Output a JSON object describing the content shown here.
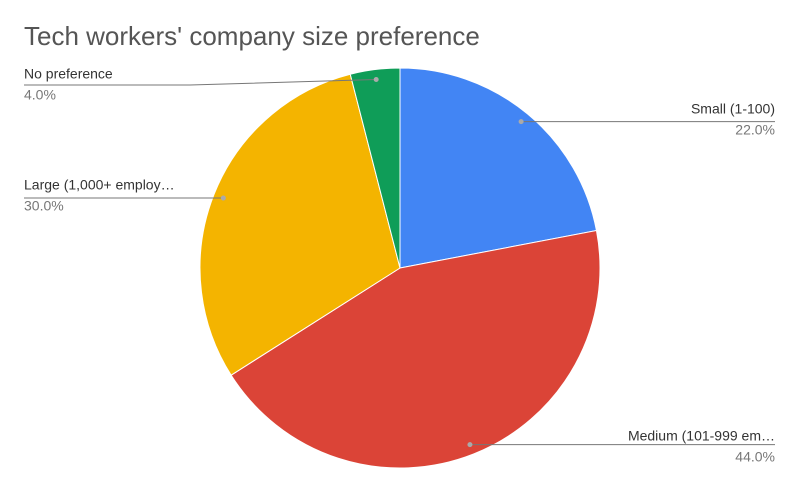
{
  "chart_data": {
    "type": "pie",
    "title": "Tech workers' company size preference",
    "categories": [
      "Small (1-100)",
      "Medium (101-999 em…",
      "Large (1,000+ employ…",
      "No preference"
    ],
    "values": [
      22,
      44,
      30,
      4
    ],
    "value_labels": [
      "22.0%",
      "44.0%",
      "30.0%",
      "4.0%"
    ],
    "colors": [
      "#4285f4",
      "#db4437",
      "#f4b400",
      "#0f9d58"
    ]
  }
}
